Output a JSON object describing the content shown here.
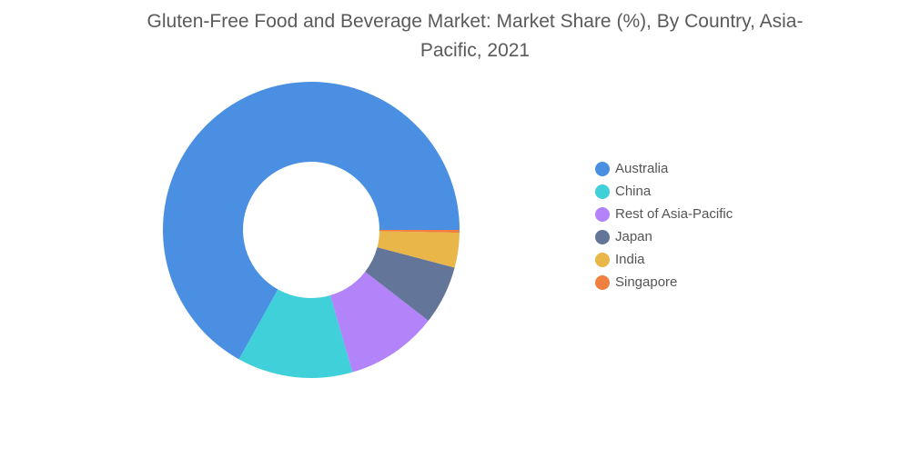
{
  "chart_data": {
    "type": "donut",
    "title": "Gluten-Free Food and Beverage Market: Market Share (%), By Country, Asia-Pacific, 2021",
    "categories": [
      "Australia",
      "China",
      "Rest of Asia-Pacific",
      "Japan",
      "India",
      "Singapore"
    ],
    "values": [
      66.9,
      12.6,
      10,
      6.4,
      3.8,
      0.3
    ],
    "colors": [
      "#4a8fe2",
      "#3fd0d9",
      "#b283f9",
      "#637598",
      "#e9b64a",
      "#f0803f"
    ],
    "legend": "right"
  }
}
